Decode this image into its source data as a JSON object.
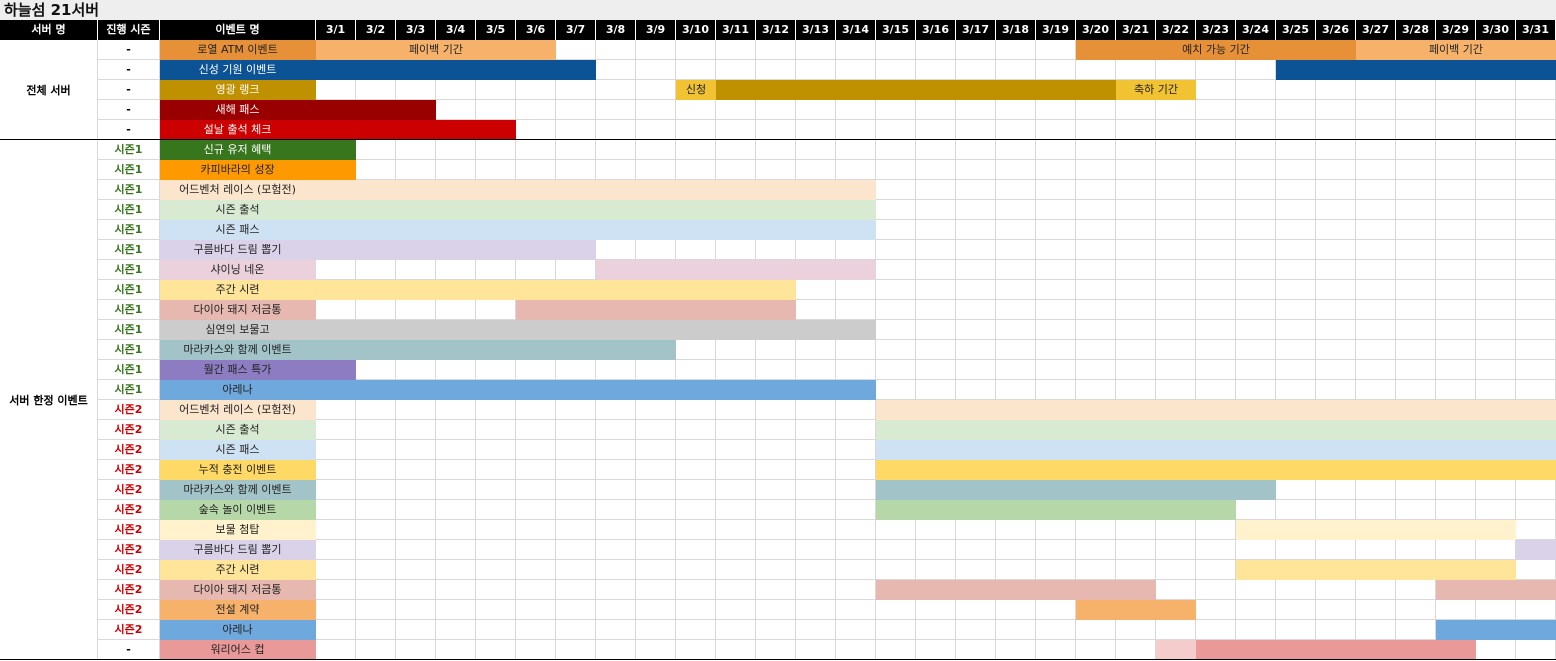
{
  "title": "하늘섬 21서버",
  "header": {
    "server": "서버 명",
    "season": "진행 시즌",
    "event": "이벤트 명",
    "days": [
      "3/1",
      "3/2",
      "3/3",
      "3/4",
      "3/5",
      "3/6",
      "3/7",
      "3/8",
      "3/9",
      "3/10",
      "3/11",
      "3/12",
      "3/13",
      "3/14",
      "3/15",
      "3/16",
      "3/17",
      "3/18",
      "3/19",
      "3/20",
      "3/21",
      "3/22",
      "3/23",
      "3/24",
      "3/25",
      "3/26",
      "3/27",
      "3/28",
      "3/29",
      "3/30",
      "3/31"
    ]
  },
  "groups": [
    {
      "label": "전체 서버",
      "rows": 5
    },
    {
      "label": "서버 한정 이벤트",
      "rows": 26
    }
  ],
  "season_colors": {
    "시즌1": "#38761d",
    "시즌2": "#cc0000",
    "-": "#000000"
  },
  "rows": [
    {
      "season": "-",
      "name": "로열 ATM 이벤트",
      "color": "#e69138",
      "text": "#222",
      "segs": [
        {
          "s": 1,
          "e": 6,
          "c": "#f6b26b",
          "label": "페이백 기간"
        },
        {
          "s": 20,
          "e": 26,
          "c": "#e69138",
          "label": "예치 가능 기간"
        },
        {
          "s": 27,
          "e": 31,
          "c": "#f6b26b",
          "label": "페이백 기간"
        }
      ]
    },
    {
      "season": "-",
      "name": "신성 기원 이벤트",
      "color": "#0b5394",
      "text": "#fff",
      "segs": [
        {
          "s": 1,
          "e": 7,
          "c": "#0b5394"
        },
        {
          "s": 25,
          "e": 31,
          "c": "#0b5394"
        }
      ]
    },
    {
      "season": "-",
      "name": "영광 랭크",
      "color": "#bf9000",
      "text": "#fff",
      "segs": [
        {
          "s": 10,
          "e": 10,
          "c": "#f1c232",
          "label": "신청"
        },
        {
          "s": 11,
          "e": 20,
          "c": "#bf9000"
        },
        {
          "s": 21,
          "e": 22,
          "c": "#f1c232",
          "label": "축하 기간"
        }
      ]
    },
    {
      "season": "-",
      "name": "새해 패스",
      "color": "#990000",
      "text": "#fff",
      "segs": [
        {
          "s": 1,
          "e": 3,
          "c": "#990000"
        }
      ]
    },
    {
      "season": "-",
      "name": "설날 출석 체크",
      "color": "#cc0000",
      "text": "#fff",
      "segs": [
        {
          "s": 1,
          "e": 5,
          "c": "#cc0000"
        }
      ]
    },
    {
      "season": "시즌1",
      "name": "신규 유저 혜택",
      "color": "#38761d",
      "text": "#fff",
      "segs": [
        {
          "s": 1,
          "e": 1,
          "c": "#38761d"
        }
      ]
    },
    {
      "season": "시즌1",
      "name": "카피바라의 성장",
      "color": "#ff9900",
      "text": "#222",
      "segs": [
        {
          "s": 1,
          "e": 1,
          "c": "#ff9900"
        }
      ]
    },
    {
      "season": "시즌1",
      "name": "어드벤처 레이스 (모험전)",
      "color": "#fce5cd",
      "text": "#222",
      "segs": [
        {
          "s": 1,
          "e": 14,
          "c": "#fce5cd"
        }
      ]
    },
    {
      "season": "시즌1",
      "name": "시즌 출석",
      "color": "#d9ead3",
      "text": "#222",
      "segs": [
        {
          "s": 1,
          "e": 14,
          "c": "#d9ead3"
        }
      ]
    },
    {
      "season": "시즌1",
      "name": "시즌 패스",
      "color": "#cfe2f3",
      "text": "#222",
      "segs": [
        {
          "s": 1,
          "e": 14,
          "c": "#cfe2f3"
        }
      ]
    },
    {
      "season": "시즌1",
      "name": "구름바다 드림 뽑기",
      "color": "#d9d2e9",
      "text": "#222",
      "segs": [
        {
          "s": 1,
          "e": 7,
          "c": "#d9d2e9"
        }
      ]
    },
    {
      "season": "시즌1",
      "name": "샤이닝 네온",
      "color": "#ead1dc",
      "text": "#222",
      "segs": [
        {
          "s": 8,
          "e": 14,
          "c": "#ead1dc"
        }
      ]
    },
    {
      "season": "시즌1",
      "name": "주간 시련",
      "color": "#ffe599",
      "text": "#222",
      "segs": [
        {
          "s": 1,
          "e": 12,
          "c": "#ffe599"
        }
      ]
    },
    {
      "season": "시즌1",
      "name": "다이아 돼지 저금통",
      "color": "#e6b8af",
      "text": "#222",
      "segs": [
        {
          "s": 6,
          "e": 12,
          "c": "#e6b8af"
        }
      ]
    },
    {
      "season": "시즌1",
      "name": "심연의 보물고",
      "color": "#cccccc",
      "text": "#222",
      "segs": [
        {
          "s": 1,
          "e": 14,
          "c": "#cccccc"
        }
      ]
    },
    {
      "season": "시즌1",
      "name": "마라카스와 함께 이벤트",
      "color": "#a2c4c9",
      "text": "#222",
      "segs": [
        {
          "s": 1,
          "e": 9,
          "c": "#a2c4c9"
        }
      ]
    },
    {
      "season": "시즌1",
      "name": "월간 패스 특가",
      "color": "#8e7cc3",
      "text": "#222",
      "segs": [
        {
          "s": 1,
          "e": 1,
          "c": "#8e7cc3"
        }
      ]
    },
    {
      "season": "시즌1",
      "name": "아레나",
      "color": "#6fa8dc",
      "text": "#222",
      "segs": [
        {
          "s": 1,
          "e": 14,
          "c": "#6fa8dc"
        }
      ]
    },
    {
      "season": "시즌2",
      "name": "어드벤처 레이스 (모험전)",
      "color": "#fce5cd",
      "text": "#222",
      "segs": [
        {
          "s": 15,
          "e": 31,
          "c": "#fce5cd"
        }
      ]
    },
    {
      "season": "시즌2",
      "name": "시즌 출석",
      "color": "#d9ead3",
      "text": "#222",
      "segs": [
        {
          "s": 15,
          "e": 31,
          "c": "#d9ead3"
        }
      ]
    },
    {
      "season": "시즌2",
      "name": "시즌 패스",
      "color": "#cfe2f3",
      "text": "#222",
      "segs": [
        {
          "s": 15,
          "e": 31,
          "c": "#cfe2f3"
        }
      ]
    },
    {
      "season": "시즌2",
      "name": "누적 충전 이벤트",
      "color": "#ffd966",
      "text": "#222",
      "segs": [
        {
          "s": 15,
          "e": 31,
          "c": "#ffd966"
        }
      ]
    },
    {
      "season": "시즌2",
      "name": "마라카스와 함께 이벤트",
      "color": "#a2c4c9",
      "text": "#222",
      "segs": [
        {
          "s": 15,
          "e": 24,
          "c": "#a2c4c9"
        }
      ]
    },
    {
      "season": "시즌2",
      "name": "숲속 놀이 이벤트",
      "color": "#b6d7a8",
      "text": "#222",
      "segs": [
        {
          "s": 15,
          "e": 23,
          "c": "#b6d7a8"
        }
      ]
    },
    {
      "season": "시즌2",
      "name": "보물 첨탑",
      "color": "#fff2cc",
      "text": "#222",
      "segs": [
        {
          "s": 24,
          "e": 30,
          "c": "#fff2cc"
        }
      ]
    },
    {
      "season": "시즌2",
      "name": "구름바다 드림 뽑기",
      "color": "#d9d2e9",
      "text": "#222",
      "segs": [
        {
          "s": 31,
          "e": 31,
          "c": "#d9d2e9"
        }
      ]
    },
    {
      "season": "시즌2",
      "name": "주간 시련",
      "color": "#ffe599",
      "text": "#222",
      "segs": [
        {
          "s": 24,
          "e": 30,
          "c": "#ffe599"
        }
      ]
    },
    {
      "season": "시즌2",
      "name": "다이아 돼지 저금통",
      "color": "#e6b8af",
      "text": "#222",
      "segs": [
        {
          "s": 15,
          "e": 21,
          "c": "#e6b8af"
        },
        {
          "s": 29,
          "e": 31,
          "c": "#e6b8af"
        }
      ]
    },
    {
      "season": "시즌2",
      "name": "전설 계약",
      "color": "#f6b26b",
      "text": "#222",
      "segs": [
        {
          "s": 20,
          "e": 22,
          "c": "#f6b26b"
        }
      ]
    },
    {
      "season": "시즌2",
      "name": "아레나",
      "color": "#6fa8dc",
      "text": "#222",
      "segs": [
        {
          "s": 29,
          "e": 31,
          "c": "#6fa8dc"
        }
      ]
    },
    {
      "season": "-",
      "name": "워리어스 컵",
      "color": "#ea9999",
      "text": "#222",
      "segs": [
        {
          "s": 22,
          "e": 22,
          "c": "#f4cccc"
        },
        {
          "s": 23,
          "e": 29,
          "c": "#ea9999"
        }
      ]
    }
  ]
}
